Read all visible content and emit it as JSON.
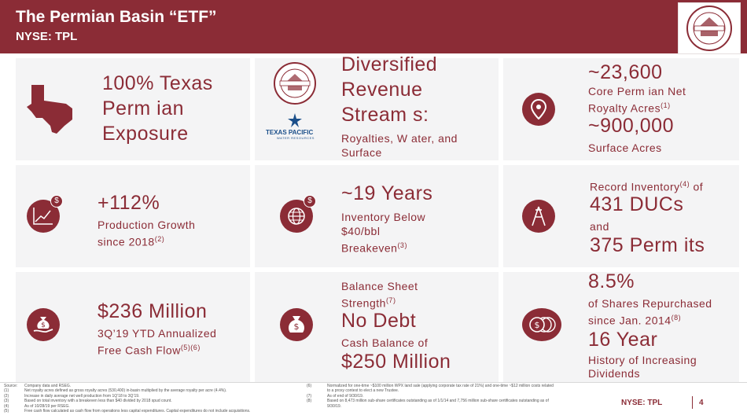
{
  "header": {
    "title": "The Permian Basin “ETF”",
    "subtitle": "NYSE: TPL",
    "logo_text": "TEXAS PACIFIC LAND TRUST"
  },
  "colors": {
    "brand": "#8b2c36",
    "panel": "#f4f4f5",
    "water_blue": "#1b4f8a"
  },
  "cells": {
    "texas": {
      "icon": "texas-map-icon",
      "line1": "100% Texas",
      "line2": "Perm ian",
      "line3": "Exposure"
    },
    "revenue": {
      "line1": "Diversified",
      "line2": "Revenue",
      "line3": "Stream s:",
      "sub1": "Royalties, W ater, and",
      "sub2": "Surface",
      "seal_text": "TEXAS PACIFIC LAND TRUST",
      "water_logo_title": "TEXAS PACIFIC",
      "water_logo_sub": "WATER RESOURCES"
    },
    "acres": {
      "icon": "location-pin-icon",
      "value1": "~23,600",
      "label1a": "Core Perm ian Net",
      "label1b": "Royalty Acres",
      "sup1": "(1)",
      "value2": "~900,000",
      "label2": "Surface Acres"
    },
    "production": {
      "icon": "growth-chart-icon",
      "value": "+112%",
      "label1": "Production Growth",
      "label2": "since 2018",
      "sup": "(2)"
    },
    "inventory": {
      "icon": "globe-dollar-icon",
      "value": "~19 Years",
      "label1": "Inventory Below",
      "label2": "$40/bbl",
      "label3": "Breakeven",
      "sup": "(3)"
    },
    "ducs": {
      "icon": "drilling-rig-icon",
      "label1": "Record Inventory",
      "sup": "(4)",
      "label1b": " of",
      "value1": "431 DUCs",
      "and": "and",
      "value2": "375 Perm its"
    },
    "cashflow": {
      "icon": "money-bag-hand-icon",
      "value": "$236 Million",
      "label1": "3Q’19 YTD Annualized",
      "label2": "Free Cash Flow",
      "sup": "(5)(6)"
    },
    "balance": {
      "icon": "money-bag-icon",
      "label1": "Balance Sheet",
      "label2": "Strength",
      "sup": "(7)",
      "value1": "No Debt",
      "label3": "Cash Balance of",
      "value2": "$250 Million"
    },
    "shares": {
      "icon": "coin-stack-icon",
      "value1": "8.5%",
      "label1": "of Shares Repurchased",
      "label2": "since Jan. 2014",
      "sup": "(8)",
      "value2": "16 Year",
      "label3": "History of Increasing",
      "label4": "Dividends"
    }
  },
  "footnotes": {
    "left": [
      [
        "Source:",
        "Company data and RSEG."
      ],
      [
        "(1)",
        "Net royalty acres defined as gross royalty acres (530,400) in-basin multiplied by the average royalty per acre (4.4%)."
      ],
      [
        "(2)",
        "Increase in daily average net well production from 1Q’18 to 3Q’19."
      ],
      [
        "(3)",
        "Based on total inventory with a breakeven less than $40 divided by 2018 spud count."
      ],
      [
        "(4)",
        "As of 10/28/19 per RSEG."
      ],
      [
        "(5)",
        "Free cash flow calculated as cash flow from operations less capital expenditures. Capital expenditures do not include acquisitions."
      ]
    ],
    "right": [
      [
        "(6)",
        "Normalized for one-time ~$100 million WPX land sale (applying corporate tax rate of 21%) and one-time ~$12 million costs related"
      ],
      [
        "",
        "to a proxy contest to elect a new Trustee."
      ],
      [
        "(7)",
        "As of end of 9/30/19."
      ],
      [
        "(8)",
        "Based on 8,473 million sub-share certificates outstanding as of 1/1/14 and 7,756 million sub-share certificates outstanding as of"
      ],
      [
        "",
        "9/30/19."
      ]
    ]
  },
  "footer": {
    "ticker": "NYSE: TPL",
    "page": "4"
  }
}
